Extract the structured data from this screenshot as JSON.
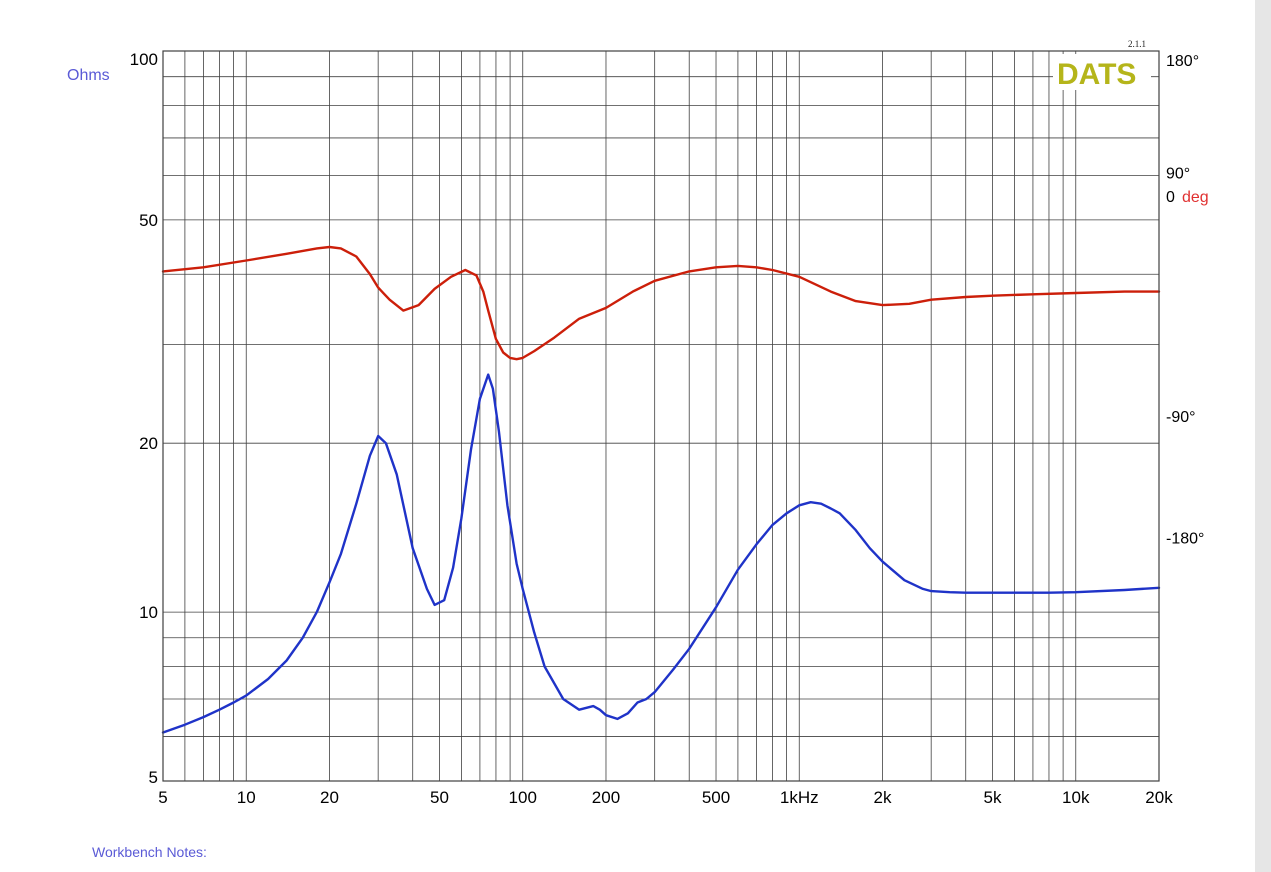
{
  "notes_label": "Workbench Notes:",
  "version": "2.1.1",
  "logo_text": "DATS",
  "colors": {
    "impedance": "#1f33c8",
    "phase": "#cc1f0a",
    "ohms_label": "#5a5ad6",
    "deg_label": "#e03030",
    "logo": "#b5b51a",
    "grid": "#404040"
  },
  "chart_data": {
    "type": "line",
    "x_scale": "log",
    "y_scale": "log",
    "xlim": [
      5,
      20000
    ],
    "ylim": [
      5,
      100
    ],
    "y_right_lim": [
      -360,
      180
    ],
    "grid": true,
    "ylabel": "Ohms",
    "y2label_num": "0",
    "y2label_unit": "deg",
    "x_ticks": [
      {
        "value": 5,
        "label": "5"
      },
      {
        "value": 10,
        "label": "10"
      },
      {
        "value": 20,
        "label": "20"
      },
      {
        "value": 50,
        "label": "50"
      },
      {
        "value": 100,
        "label": "100"
      },
      {
        "value": 200,
        "label": "200"
      },
      {
        "value": 500,
        "label": "500"
      },
      {
        "value": 1000,
        "label": "1kHz"
      },
      {
        "value": 2000,
        "label": "2k"
      },
      {
        "value": 5000,
        "label": "5k"
      },
      {
        "value": 10000,
        "label": "10k"
      },
      {
        "value": 20000,
        "label": "20k"
      }
    ],
    "y_ticks": [
      {
        "value": 5,
        "label": "5"
      },
      {
        "value": 10,
        "label": "10"
      },
      {
        "value": 20,
        "label": "20"
      },
      {
        "value": 50,
        "label": "50"
      },
      {
        "value": 100,
        "label": "100"
      }
    ],
    "y2_ticks": [
      {
        "value": 180,
        "label": "180°"
      },
      {
        "value": 90,
        "label": "90°"
      },
      {
        "value": -90,
        "label": "-90°"
      },
      {
        "value": -180,
        "label": "-180°"
      }
    ],
    "series": [
      {
        "key": "impedance",
        "axis": "left",
        "x": [
          5,
          6,
          7,
          8,
          9,
          10,
          12,
          14,
          16,
          18,
          20,
          22,
          25,
          28,
          30,
          32,
          35,
          40,
          45,
          48,
          52,
          56,
          60,
          65,
          70,
          75,
          78,
          82,
          88,
          95,
          100,
          110,
          120,
          140,
          160,
          180,
          190,
          200,
          220,
          240,
          260,
          280,
          300,
          350,
          400,
          500,
          600,
          700,
          800,
          900,
          1000,
          1100,
          1200,
          1300,
          1400,
          1600,
          1800,
          2000,
          2400,
          2800,
          3000,
          3500,
          4000,
          5000,
          6000,
          8000,
          10000,
          15000,
          20000
        ],
        "y": [
          6.1,
          6.3,
          6.5,
          6.7,
          6.9,
          7.1,
          7.6,
          8.2,
          9.0,
          10.0,
          11.3,
          12.7,
          15.6,
          19.0,
          20.6,
          20.0,
          17.6,
          13.0,
          11.0,
          10.3,
          10.5,
          12.0,
          14.7,
          19.5,
          24.0,
          26.5,
          25.0,
          21.0,
          15.5,
          12.2,
          11.0,
          9.2,
          8.0,
          7.0,
          6.7,
          6.8,
          6.7,
          6.55,
          6.45,
          6.6,
          6.9,
          7.0,
          7.2,
          7.9,
          8.6,
          10.2,
          11.9,
          13.2,
          14.3,
          15.0,
          15.5,
          15.7,
          15.6,
          15.3,
          15.0,
          14.0,
          13.0,
          12.3,
          11.4,
          11.0,
          10.9,
          10.85,
          10.83,
          10.83,
          10.83,
          10.83,
          10.85,
          10.95,
          11.05
        ]
      },
      {
        "key": "phase",
        "axis": "right",
        "x": [
          5,
          7,
          10,
          14,
          18,
          20,
          22,
          25,
          28,
          30,
          33,
          37,
          42,
          48,
          55,
          62,
          68,
          72,
          75,
          80,
          85,
          90,
          95,
          100,
          110,
          130,
          160,
          200,
          250,
          300,
          400,
          500,
          600,
          700,
          800,
          1000,
          1300,
          1600,
          2000,
          2500,
          3000,
          4000,
          5000,
          7000,
          10000,
          15000,
          20000
        ],
        "y": [
          17,
          20,
          25,
          30,
          34,
          35,
          34,
          28,
          15,
          5,
          -4,
          -12,
          -8,
          4,
          13,
          18,
          14,
          2,
          -12,
          -33,
          -43,
          -47,
          -48,
          -47,
          -42,
          -32,
          -18,
          -10,
          2,
          10,
          17,
          20,
          21,
          20,
          18,
          13,
          2,
          -5,
          -8,
          -7,
          -4,
          -2,
          -1,
          0,
          1,
          2,
          2
        ]
      }
    ]
  }
}
